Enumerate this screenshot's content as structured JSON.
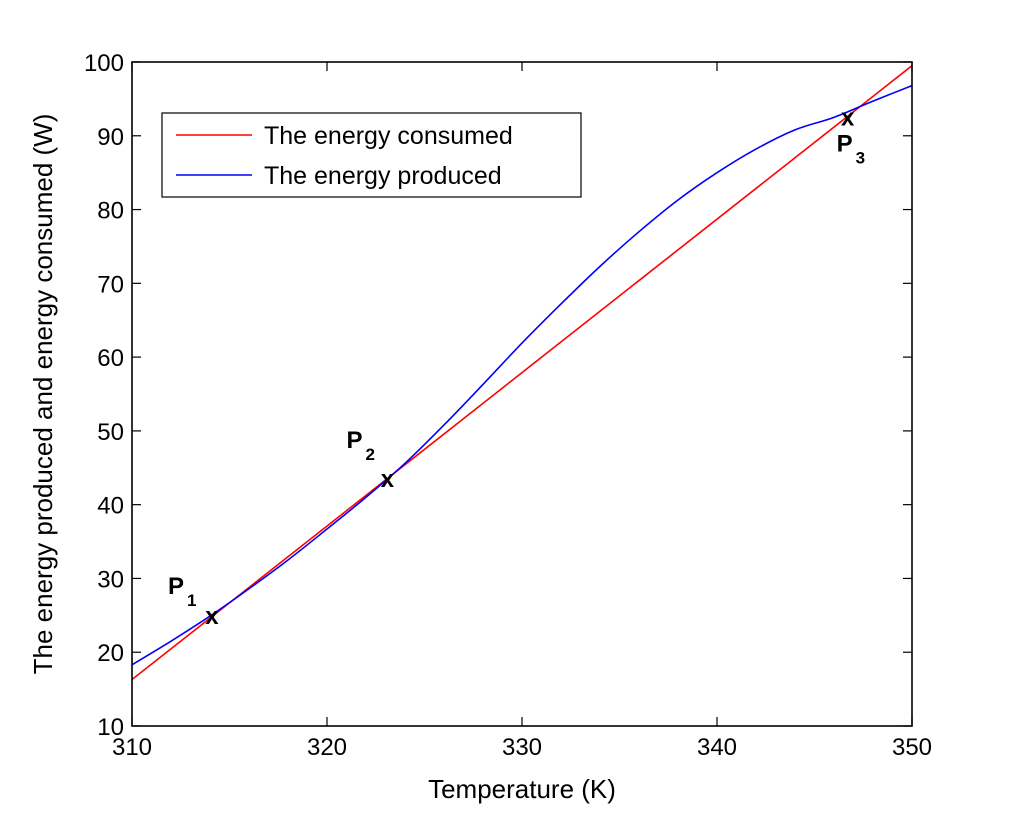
{
  "chart_data": {
    "type": "line",
    "xlabel": "Temperature (K)",
    "ylabel": "The energy produced and energy consumed (W)",
    "xlim": [
      310,
      350
    ],
    "ylim": [
      10,
      100
    ],
    "xticks": [
      310,
      320,
      330,
      340,
      350
    ],
    "yticks": [
      10,
      20,
      30,
      40,
      50,
      60,
      70,
      80,
      90,
      100
    ],
    "grid": false,
    "legend_position": "top-left",
    "series": [
      {
        "name": "The energy consumed",
        "color": "#ff0000",
        "x": [
          310,
          350
        ],
        "y": [
          16.3,
          99.5
        ]
      },
      {
        "name": "The energy produced",
        "color": "#0000ff",
        "x": [
          310,
          312,
          314,
          316,
          318,
          320,
          322,
          324,
          326,
          328,
          330,
          332,
          334,
          336,
          338,
          340,
          342,
          344,
          346,
          348,
          350
        ],
        "y": [
          18.3,
          21.5,
          24.9,
          28.6,
          32.5,
          36.7,
          41.0,
          45.6,
          50.8,
          56.3,
          61.9,
          67.2,
          72.3,
          77.0,
          81.3,
          85.0,
          88.2,
          90.8,
          92.5,
          94.7,
          96.8
        ]
      }
    ],
    "annotations": [
      {
        "label": "P",
        "subscript": "1",
        "marker": "x",
        "x": 314.1,
        "y": 24.9
      },
      {
        "label": "P",
        "subscript": "2",
        "marker": "x",
        "x": 323.1,
        "y": 43.5
      },
      {
        "label": "P",
        "subscript": "3",
        "marker": "x",
        "x": 346.7,
        "y": 92.5
      }
    ]
  }
}
